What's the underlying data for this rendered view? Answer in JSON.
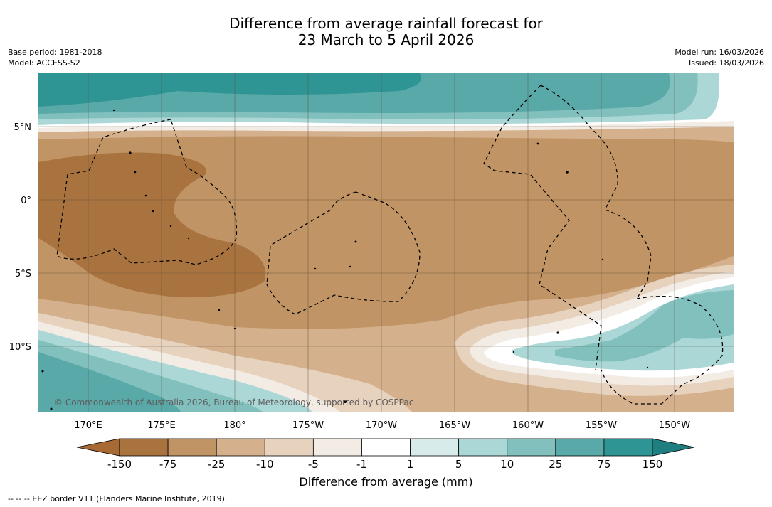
{
  "title": {
    "line1": "Difference from average rainfall forecast for",
    "line2": "23 March to 5 April 2026"
  },
  "meta": {
    "base_period": "Base period: 1981-2018",
    "model": "Model: ACCESS-S2",
    "model_run": "Model run: 16/03/2026",
    "issued": "Issued: 18/03/2026"
  },
  "map": {
    "lat_labels": [
      "5°N",
      "0°",
      "5°S",
      "10°S"
    ],
    "lon_labels": [
      "170°E",
      "175°E",
      "180°",
      "175°W",
      "170°W",
      "165°W",
      "160°W",
      "155°W",
      "150°W"
    ],
    "copyright": "© Commonwealth of Australia 2026, Bureau of Meteorology, supported by COSPPac"
  },
  "colorbar": {
    "ticks": [
      "-150",
      "-75",
      "-25",
      "-10",
      "-5",
      "-1",
      "1",
      "5",
      "10",
      "25",
      "75",
      "150"
    ],
    "colors": [
      "#a86a35",
      "#a9733f",
      "#c09464",
      "#d4b08c",
      "#e6d2bd",
      "#f3ece4",
      "#ffffff",
      "#d6ebea",
      "#abd7d6",
      "#82c0be",
      "#58a9a8",
      "#2f9594",
      "#1f7f80"
    ],
    "title": "Difference from average (mm)"
  },
  "footer": "--  --  -- EEZ border V11 (Flanders Marine Institute, 2019)."
}
